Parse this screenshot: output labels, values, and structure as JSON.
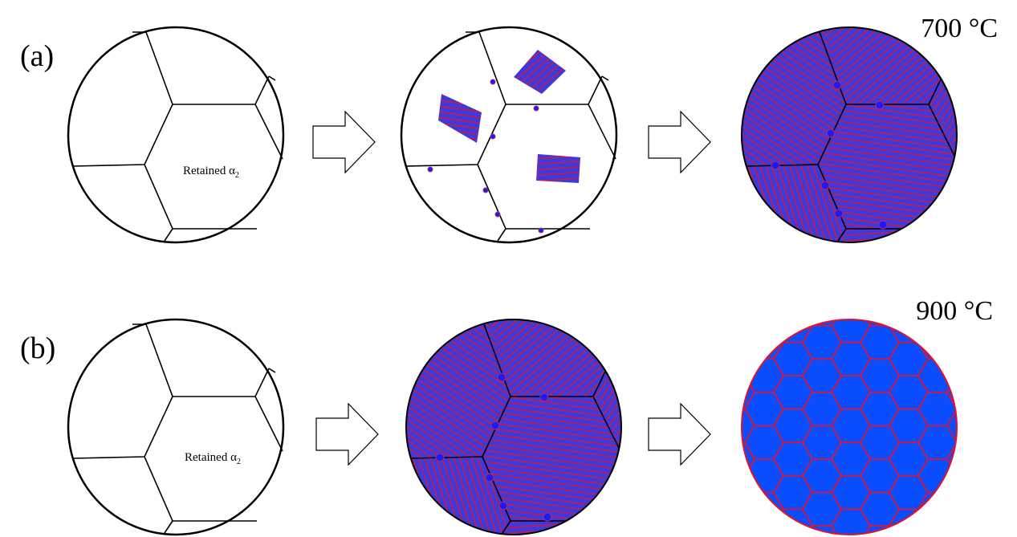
{
  "panels": {
    "a": {
      "label": "(a)",
      "temperature": "700 °C",
      "retained": {
        "text": "Retained α",
        "subscript": "2"
      }
    },
    "b": {
      "label": "(b)",
      "temperature": "900 °C",
      "retained": {
        "text": "Retained α",
        "subscript": "2"
      }
    }
  }
}
